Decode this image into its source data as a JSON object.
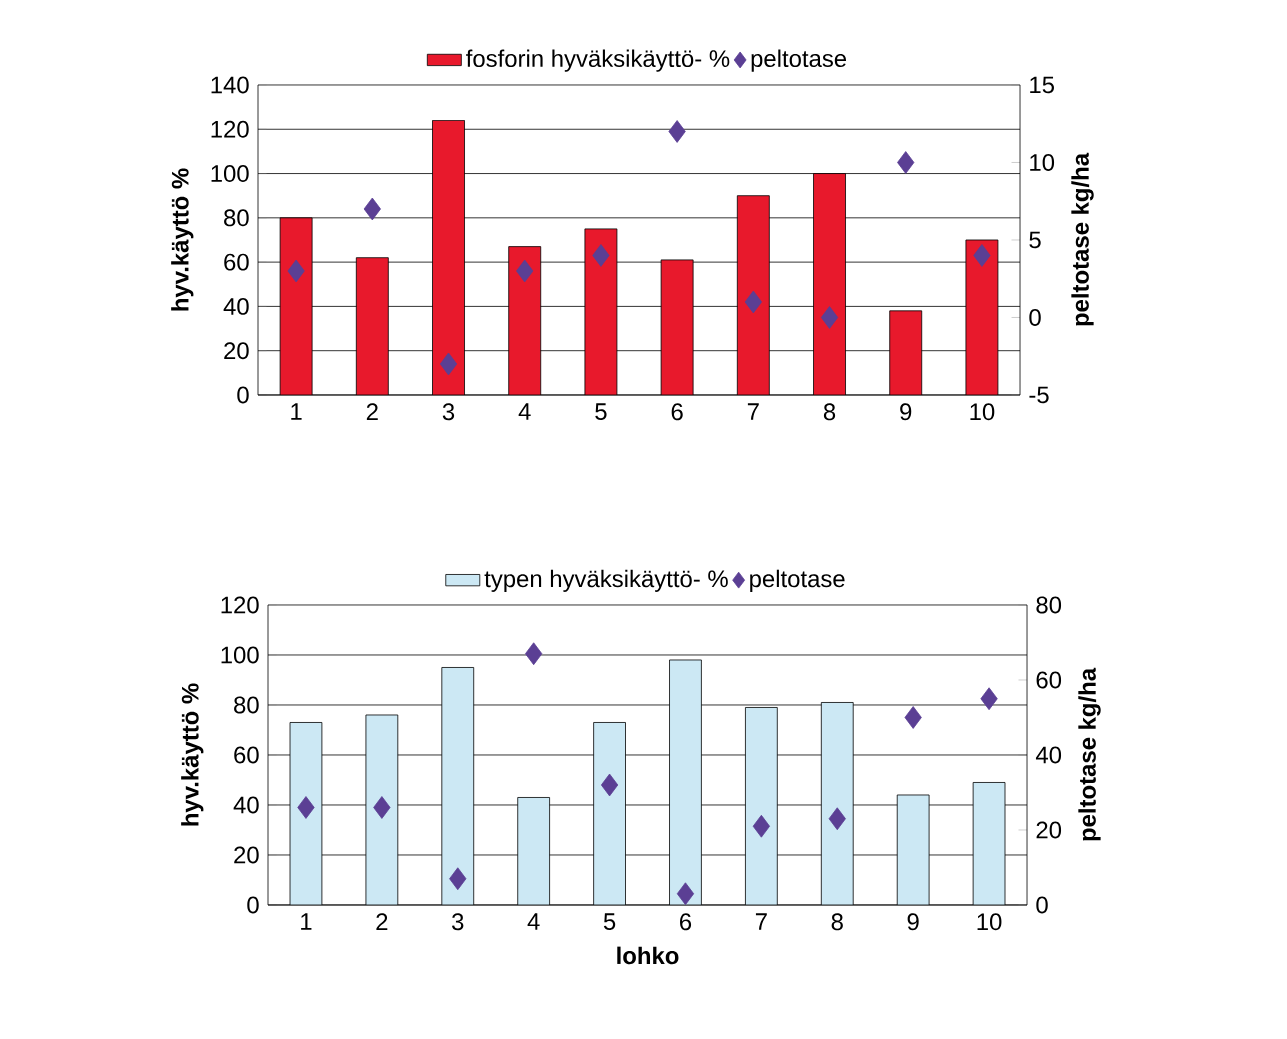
{
  "chart_data": [
    {
      "type": "bar",
      "categories": [
        "1",
        "2",
        "3",
        "4",
        "5",
        "6",
        "7",
        "8",
        "9",
        "10"
      ],
      "ylabel": "hyv.käyttö %",
      "y2label": "peltotase kg/ha",
      "ylim": [
        0,
        140
      ],
      "yticks": [
        0,
        20,
        40,
        60,
        80,
        100,
        120,
        140
      ],
      "y2lim": [
        -5,
        15
      ],
      "y2ticks": [
        -5,
        0,
        5,
        10,
        15
      ],
      "grid": "y",
      "legend": "top",
      "marker": "diamond",
      "series": [
        {
          "name": "fosforin hyväksikäyttö- %",
          "color": "#e8192c",
          "values": [
            80,
            62,
            124,
            67,
            75,
            61,
            90,
            100,
            38,
            70
          ]
        },
        {
          "name": "peltotase",
          "type": "scatter",
          "axis": "y2",
          "color": "#5b3f94",
          "values": [
            3,
            7,
            -3,
            3,
            4,
            12,
            1,
            0,
            10,
            4
          ]
        }
      ]
    },
    {
      "type": "bar",
      "categories": [
        "1",
        "2",
        "3",
        "4",
        "5",
        "6",
        "7",
        "8",
        "9",
        "10"
      ],
      "xlabel": "lohko",
      "ylabel": "hyv.käyttö %",
      "y2label": "peltotase kg/ha",
      "ylim": [
        0,
        120
      ],
      "yticks": [
        0,
        20,
        40,
        60,
        80,
        100,
        120
      ],
      "y2lim": [
        0,
        80
      ],
      "y2ticks": [
        0,
        20,
        40,
        60,
        80
      ],
      "grid": "y",
      "legend": "top",
      "marker": "diamond",
      "series": [
        {
          "name": "typen hyväksikäyttö- %",
          "color": "#cce8f4",
          "values": [
            73,
            76,
            95,
            43,
            73,
            98,
            79,
            81,
            44,
            49
          ]
        },
        {
          "name": "peltotase",
          "type": "scatter",
          "axis": "y2",
          "color": "#5b3f94",
          "values": [
            26,
            26,
            7,
            67,
            32,
            3,
            21,
            23,
            50,
            55
          ]
        }
      ]
    }
  ]
}
